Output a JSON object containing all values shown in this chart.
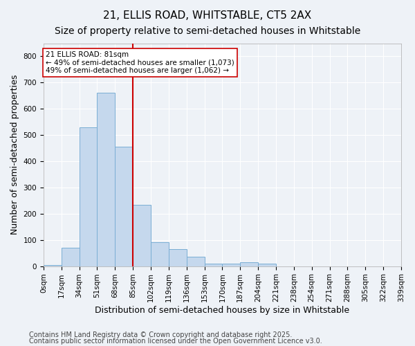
{
  "title1": "21, ELLIS ROAD, WHITSTABLE, CT5 2AX",
  "title2": "Size of property relative to semi-detached houses in Whitstable",
  "xlabel": "Distribution of semi-detached houses by size in Whitstable",
  "ylabel": "Number of semi-detached properties",
  "bin_labels": [
    "0sqm",
    "17sqm",
    "34sqm",
    "51sqm",
    "68sqm",
    "85sqm",
    "102sqm",
    "119sqm",
    "136sqm",
    "153sqm",
    "170sqm",
    "187sqm",
    "204sqm",
    "221sqm",
    "238sqm",
    "254sqm",
    "271sqm",
    "288sqm",
    "305sqm",
    "322sqm",
    "339sqm"
  ],
  "bar_heights": [
    5,
    70,
    530,
    660,
    455,
    235,
    90,
    65,
    35,
    10,
    10,
    15,
    10,
    0,
    0,
    0,
    0,
    0,
    0,
    0
  ],
  "bar_color": "#c5d8ed",
  "bar_edge_color": "#7aaed4",
  "vline_x": 85,
  "vline_color": "#cc0000",
  "annotation_title": "21 ELLIS ROAD: 81sqm",
  "annotation_line1": "← 49% of semi-detached houses are smaller (1,073)",
  "annotation_line2": "49% of semi-detached houses are larger (1,062) →",
  "annotation_box_color": "#ffffff",
  "annotation_box_edge": "#cc0000",
  "ylim": [
    0,
    850
  ],
  "yticks": [
    0,
    100,
    200,
    300,
    400,
    500,
    600,
    700,
    800
  ],
  "footnote1": "Contains HM Land Registry data © Crown copyright and database right 2025.",
  "footnote2": "Contains public sector information licensed under the Open Government Licence v3.0.",
  "bg_color": "#eef2f7",
  "grid_color": "#ffffff",
  "title_fontsize": 11,
  "subtitle_fontsize": 10,
  "axis_label_fontsize": 9,
  "tick_fontsize": 7.5,
  "footnote_fontsize": 7
}
